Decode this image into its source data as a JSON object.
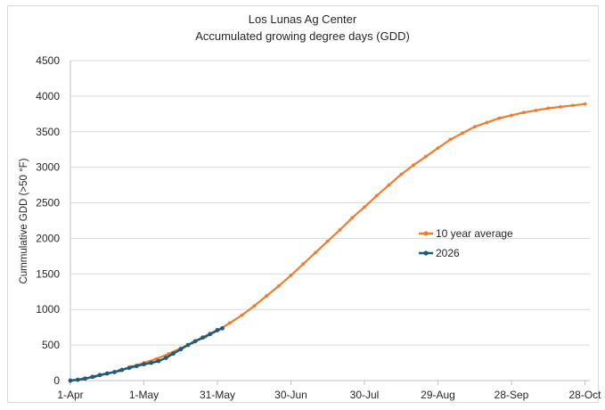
{
  "chart_data": {
    "type": "line",
    "title": "Los Lunas Ag Center",
    "subtitle": "Accumulated growing degree days (GDD)",
    "xlabel": "",
    "ylabel": "Cummulative GDD  (>50  °F)",
    "ylim": [
      0,
      4500
    ],
    "yticks": [
      0,
      500,
      1000,
      1500,
      2000,
      2500,
      3000,
      3500,
      4000,
      4500
    ],
    "x_unit": "days since 1-Apr",
    "xticks": [
      {
        "day": 0,
        "label": "1-Apr"
      },
      {
        "day": 30,
        "label": "1-May"
      },
      {
        "day": 60,
        "label": "31-May"
      },
      {
        "day": 90,
        "label": "30-Jun"
      },
      {
        "day": 120,
        "label": "30-Jul"
      },
      {
        "day": 150,
        "label": "29-Aug"
      },
      {
        "day": 180,
        "label": "28-Sep"
      },
      {
        "day": 210,
        "label": "28-Oct"
      }
    ],
    "grid": {
      "horizontal": true,
      "vertical": false
    },
    "legend_position": "right",
    "series": [
      {
        "name": "10 year average",
        "color": "#ed7d31",
        "x": [
          0,
          5,
          10,
          15,
          20,
          25,
          30,
          35,
          40,
          45,
          50,
          55,
          60,
          65,
          70,
          75,
          80,
          85,
          90,
          95,
          100,
          105,
          110,
          115,
          120,
          125,
          130,
          135,
          140,
          145,
          150,
          155,
          160,
          165,
          170,
          175,
          180,
          185,
          190,
          195,
          200,
          205,
          210
        ],
        "values": [
          0,
          22,
          55,
          95,
          140,
          195,
          250,
          305,
          375,
          455,
          535,
          610,
          700,
          810,
          920,
          1050,
          1190,
          1330,
          1480,
          1640,
          1800,
          1960,
          2120,
          2290,
          2440,
          2600,
          2750,
          2900,
          3030,
          3150,
          3270,
          3390,
          3480,
          3570,
          3630,
          3690,
          3730,
          3770,
          3800,
          3830,
          3850,
          3870,
          3890
        ]
      },
      {
        "name": "2026",
        "color": "#1f5c7a",
        "x": [
          0,
          3,
          6,
          9,
          12,
          15,
          18,
          21,
          24,
          27,
          30,
          33,
          36,
          39,
          42,
          45,
          48,
          51,
          54,
          57,
          60,
          62
        ],
        "values": [
          0,
          12,
          28,
          52,
          78,
          100,
          120,
          150,
          180,
          205,
          230,
          250,
          275,
          320,
          380,
          440,
          500,
          555,
          605,
          655,
          710,
          735
        ]
      }
    ]
  }
}
